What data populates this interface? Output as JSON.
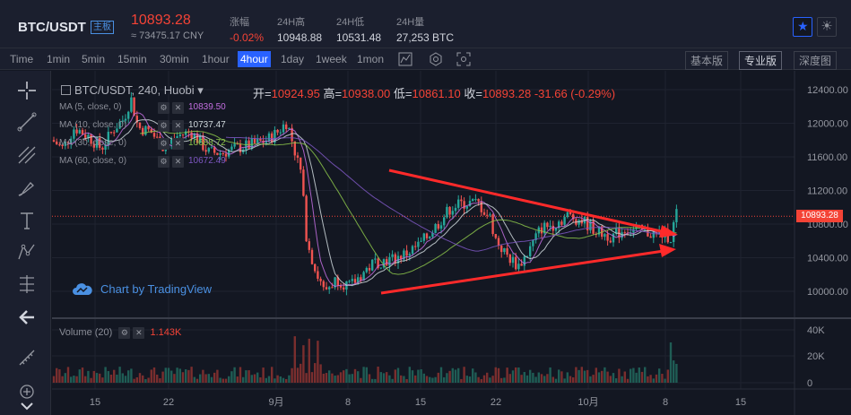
{
  "header": {
    "pair": "BTC/USDT",
    "badge": "主板",
    "last_price": "10893.28",
    "cny_price": "≈ 73475.17 CNY",
    "change_label": "涨幅",
    "change_value": "-0.02%",
    "high_label": "24H高",
    "high_value": "10948.88",
    "low_label": "24H低",
    "low_value": "10531.48",
    "volume_label": "24H量",
    "volume_value": "27,253 BTC"
  },
  "toolbar": {
    "timeframes": [
      "Time",
      "1min",
      "5min",
      "15min",
      "30min",
      "1hour",
      "4hour",
      "1day",
      "1week",
      "1mon"
    ],
    "active_timeframe": "4hour",
    "views": [
      "基本版",
      "专业版",
      "深度图"
    ],
    "active_view": "专业版"
  },
  "chart": {
    "symbol": "BTC/USDT, 240, Huobi",
    "ohlc": {
      "open_label": "开=",
      "open": "10924.95",
      "high_label": "高=",
      "high": "10938.00",
      "low_label": "低=",
      "low": "10861.10",
      "close_label": "收=",
      "close": "10893.28",
      "change": "-31.66 (-0.29%)"
    },
    "mas": [
      {
        "label": "MA (5, close, 0)",
        "value": "10839.50",
        "color": "#c36ee0"
      },
      {
        "label": "MA (10, close, 0)",
        "value": "10737.47",
        "color": "#cfd8dc"
      },
      {
        "label": "MA (30, close, 0)",
        "value": "10688.72",
        "color": "#8bc34a"
      },
      {
        "label": "MA (60, close, 0)",
        "value": "10672.49",
        "color": "#7e57c2"
      }
    ],
    "watermark": "Chart by TradingView",
    "volume_label": "Volume (20)",
    "volume_value": "1.143K",
    "current_price_tag": "10893.28",
    "price_ticks": [
      "12400.00",
      "12000.00",
      "11600.00",
      "11200.00",
      "10800.00",
      "10400.00",
      "10000.00"
    ],
    "volume_ticks": [
      "40K",
      "20K",
      "0"
    ],
    "x_ticks": [
      "15",
      "22",
      "9月",
      "8",
      "15",
      "22",
      "10月",
      "8",
      "15"
    ]
  },
  "colors": {
    "up": "#26a69a",
    "down": "#ef5350",
    "accent": "#2962ff",
    "trendline": "#ff2a2a"
  }
}
